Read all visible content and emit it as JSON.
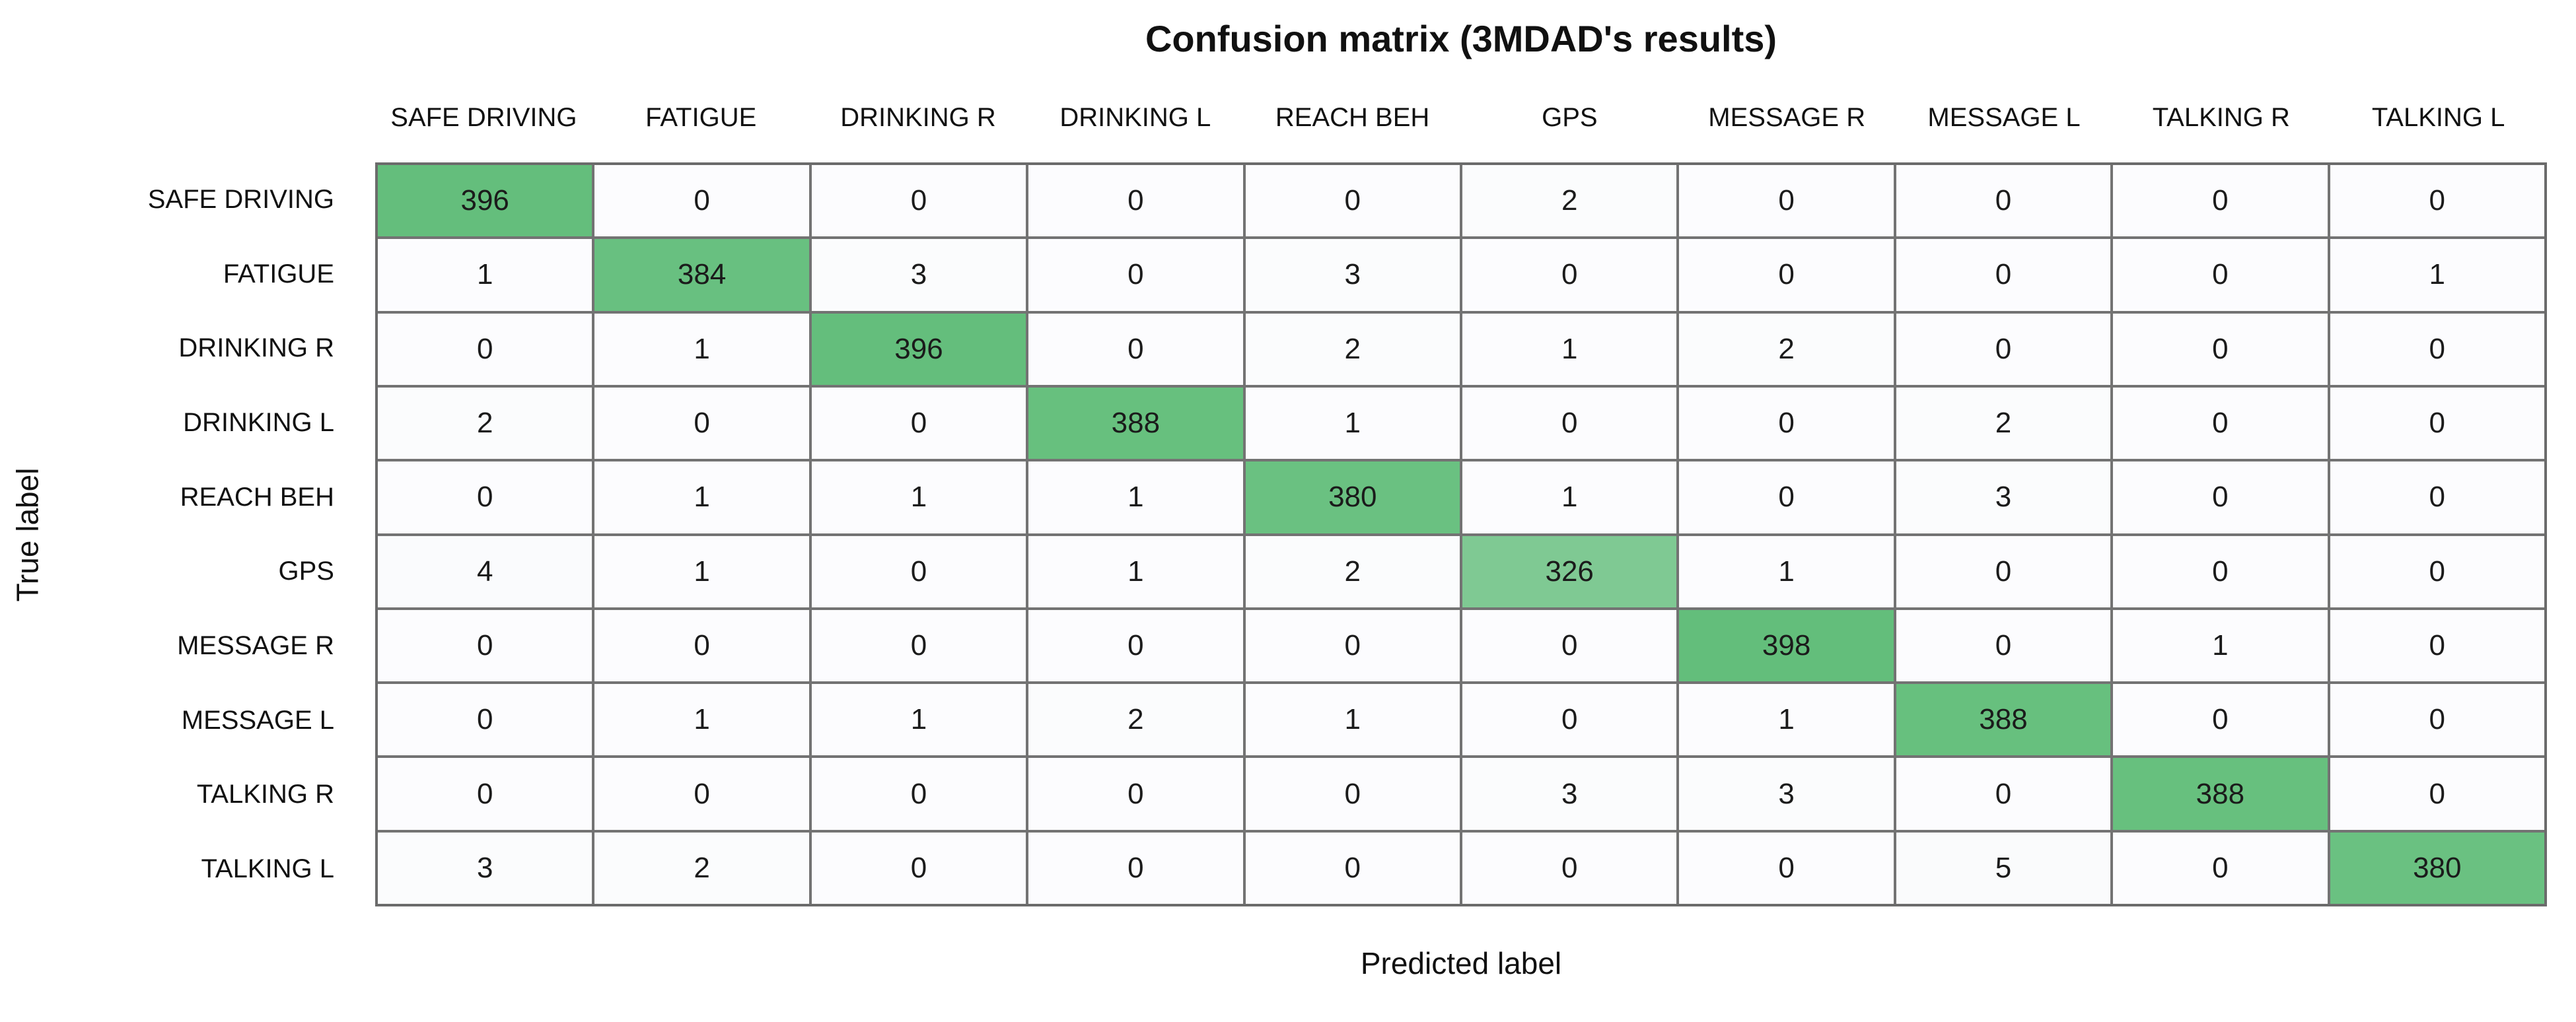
{
  "figure": {
    "title": "Confusion matrix (3MDAD's results)",
    "xlabel": "Predicted label",
    "ylabel": "True label"
  },
  "chart_data": {
    "type": "heatmap",
    "title": "Confusion matrix (3MDAD's results)",
    "xlabel": "Predicted label",
    "ylabel": "True label",
    "x_categories": [
      "SAFE DRIVING",
      "FATIGUE",
      "DRINKING R",
      "DRINKING L",
      "REACH BEH",
      "GPS",
      "MESSAGE R",
      "MESSAGE L",
      "TALKING R",
      "TALKING L"
    ],
    "y_categories": [
      "SAFE DRIVING",
      "FATIGUE",
      "DRINKING R",
      "DRINKING L",
      "REACH BEH",
      "GPS",
      "MESSAGE R",
      "MESSAGE L",
      "TALKING R",
      "TALKING L"
    ],
    "matrix": [
      [
        396,
        0,
        0,
        0,
        0,
        2,
        0,
        0,
        0,
        0
      ],
      [
        1,
        384,
        3,
        0,
        3,
        0,
        0,
        0,
        0,
        1
      ],
      [
        0,
        1,
        396,
        0,
        2,
        1,
        2,
        0,
        0,
        0
      ],
      [
        2,
        0,
        0,
        388,
        1,
        0,
        0,
        2,
        0,
        0
      ],
      [
        0,
        1,
        1,
        1,
        380,
        1,
        0,
        3,
        0,
        0
      ],
      [
        4,
        1,
        0,
        1,
        2,
        326,
        1,
        0,
        0,
        0
      ],
      [
        0,
        0,
        0,
        0,
        0,
        0,
        398,
        0,
        1,
        0
      ],
      [
        0,
        1,
        1,
        2,
        1,
        0,
        1,
        388,
        0,
        0
      ],
      [
        0,
        0,
        0,
        0,
        0,
        3,
        3,
        0,
        388,
        0
      ],
      [
        3,
        2,
        0,
        0,
        0,
        0,
        0,
        5,
        0,
        380
      ]
    ],
    "value_range": [
      0,
      398
    ],
    "diagonal_values": [
      396,
      384,
      396,
      388,
      380,
      326,
      398,
      388,
      388,
      380
    ],
    "grid": "on",
    "legend": "none",
    "colors": {
      "max_green": "#63BE7B",
      "light_green_low_diagonal": "#8CCE9D",
      "cell_background": "#FCFCFE",
      "grid_line": "#737373",
      "cell_text": "#1B1B1B",
      "label_text": "#111111"
    },
    "color_rule": "cell fill interpolates linearly from cell_background (value 0) to max_green (value 398)"
  }
}
